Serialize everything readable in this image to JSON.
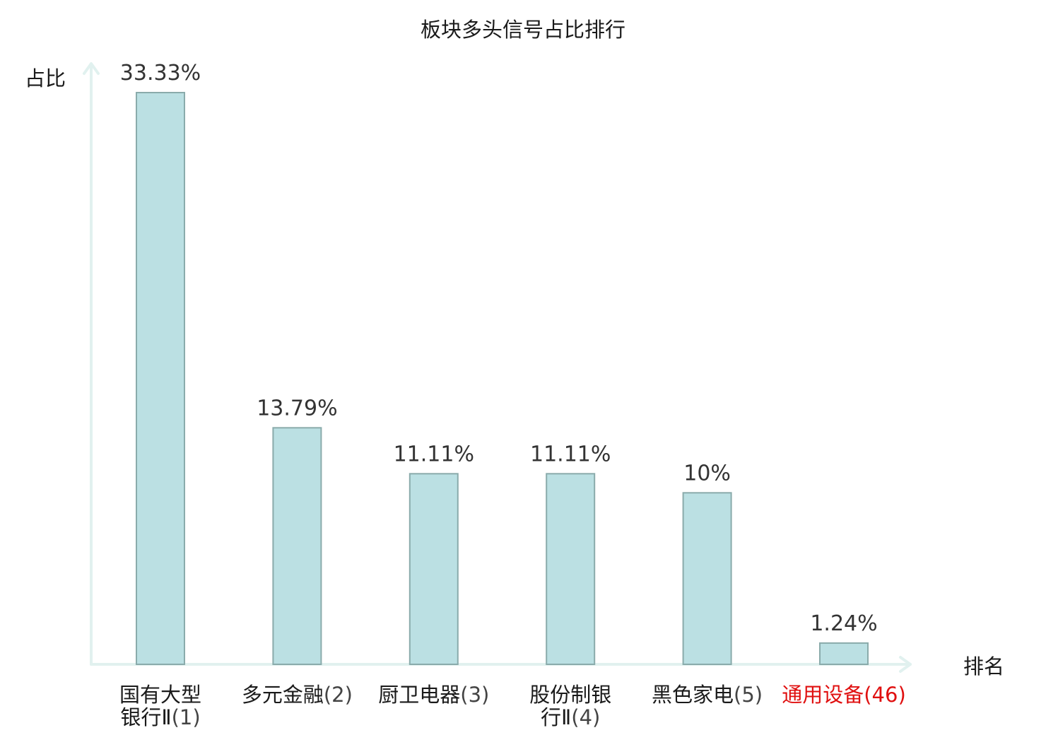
{
  "chart_data": {
    "type": "bar",
    "title": "板块多头信号占比排行",
    "ylabel": "占比",
    "xlabel": "排名",
    "categories": [
      {
        "name_lines": [
          "国有大型",
          "银行Ⅱ"
        ],
        "rank": "(1)",
        "highlight": false
      },
      {
        "name_lines": [
          "多元金融"
        ],
        "rank": "(2)",
        "highlight": false
      },
      {
        "name_lines": [
          "厨卫电器"
        ],
        "rank": "(3)",
        "highlight": false
      },
      {
        "name_lines": [
          "股份制银",
          "行Ⅱ"
        ],
        "rank": "(4)",
        "highlight": false
      },
      {
        "name_lines": [
          "黑色家电"
        ],
        "rank": "(5)",
        "highlight": false
      },
      {
        "name_lines": [
          "通用设备"
        ],
        "rank": "(46)",
        "highlight": true
      }
    ],
    "values": [
      33.33,
      13.79,
      11.11,
      11.11,
      10,
      1.24
    ],
    "value_labels": [
      "33.33%",
      "13.79%",
      "11.11%",
      "11.11%",
      "10%",
      "1.24%"
    ],
    "ylim": [
      0,
      33.33
    ],
    "grid": false,
    "legend": "none"
  },
  "colors": {
    "bar_fill": "#bbe0e3",
    "bar_stroke": "#8aabab",
    "axis": "#e1f1ef",
    "highlight_text": "#e01010",
    "text": "#1a1a1a",
    "value_text": "#333333",
    "rank_text": "#444444"
  }
}
